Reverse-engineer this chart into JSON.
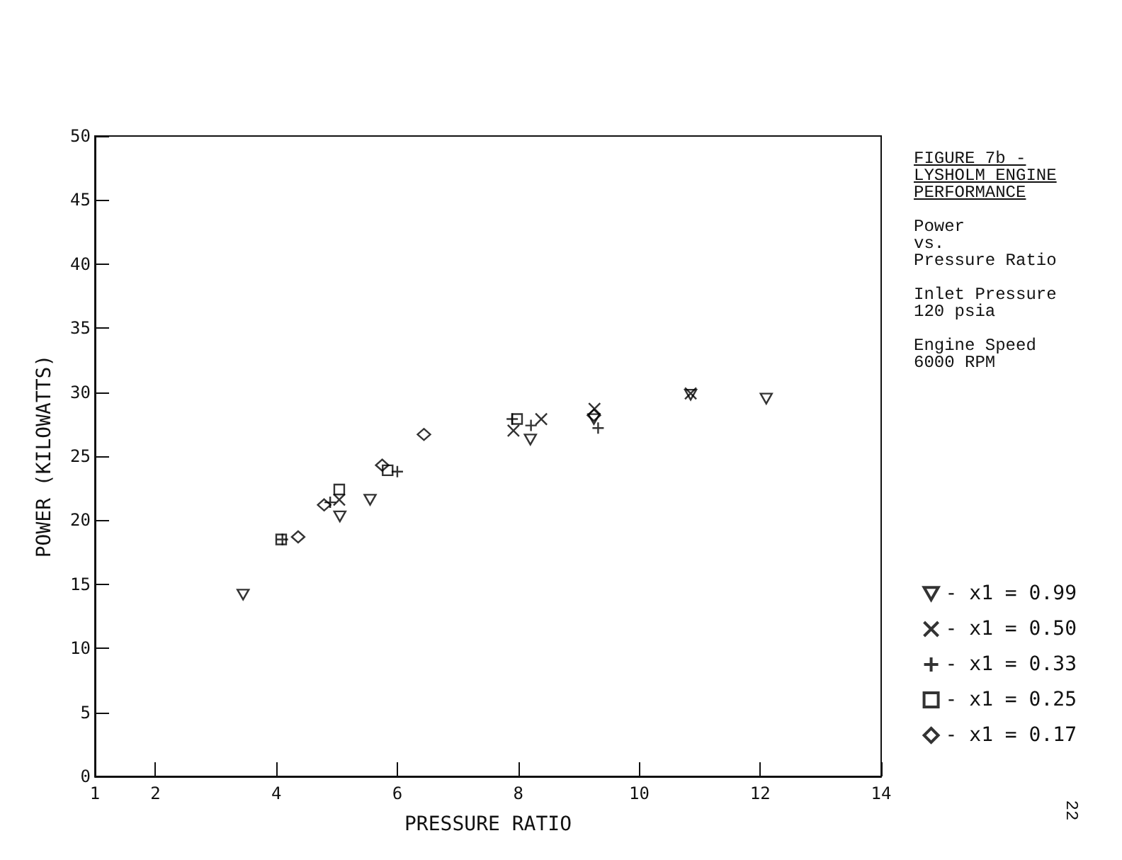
{
  "chart_data": {
    "type": "scatter",
    "title": "FIGURE 7b -\nLYSHOLM ENGINE\nPERFORMANCE",
    "subtitle": "Power\nvs.\nPressure Ratio",
    "xlabel": "PRESSURE RATIO",
    "ylabel": "POWER (KILOWATTS)",
    "annotations": [
      "Inlet Pressure\n120 psia",
      "Engine Speed\n6000 RPM",
      "22"
    ],
    "series": [
      {
        "name": "- x1 = 0.99",
        "color": "#000000",
        "marker": "triangle_down",
        "x": [
          3.45,
          5.05,
          5.55,
          8.2,
          9.25,
          10.85,
          12.1
        ],
        "values": [
          14.2,
          20.3,
          21.6,
          26.3,
          27.9,
          29.8,
          29.5
        ]
      },
      {
        "name": "- x1 = 0.50",
        "color": "#000000",
        "marker": "x",
        "x": [
          5.04,
          7.92,
          8.38,
          9.26,
          10.85
        ],
        "values": [
          21.6,
          27.0,
          27.9,
          28.7,
          29.9
        ]
      },
      {
        "name": "- x1 = 0.33",
        "color": "#000000",
        "marker": "plus",
        "x": [
          4.1,
          4.89,
          6.0,
          7.9,
          8.21,
          9.32
        ],
        "values": [
          18.5,
          21.4,
          23.8,
          27.9,
          27.4,
          27.2
        ]
      },
      {
        "name": "- x1 = 0.25",
        "color": "#000000",
        "marker": "square",
        "x": [
          4.08,
          5.04,
          5.84,
          7.98
        ],
        "values": [
          18.5,
          22.4,
          23.9,
          27.9
        ]
      },
      {
        "name": "- x1 = 0.17",
        "color": "#000000",
        "marker": "diamond",
        "x": [
          4.36,
          4.79,
          5.75,
          6.44,
          9.25
        ],
        "values": [
          18.7,
          21.2,
          24.3,
          26.7,
          28.2
        ]
      }
    ],
    "xlim": [
      1,
      14
    ],
    "xticks": [
      1,
      2,
      4,
      6,
      8,
      10,
      12,
      14
    ],
    "ylim": [
      0,
      50
    ],
    "yticks": [
      0,
      5,
      10,
      15,
      20,
      25,
      30,
      35,
      40,
      45,
      50
    ],
    "grid": false,
    "legend": "bottom right"
  }
}
